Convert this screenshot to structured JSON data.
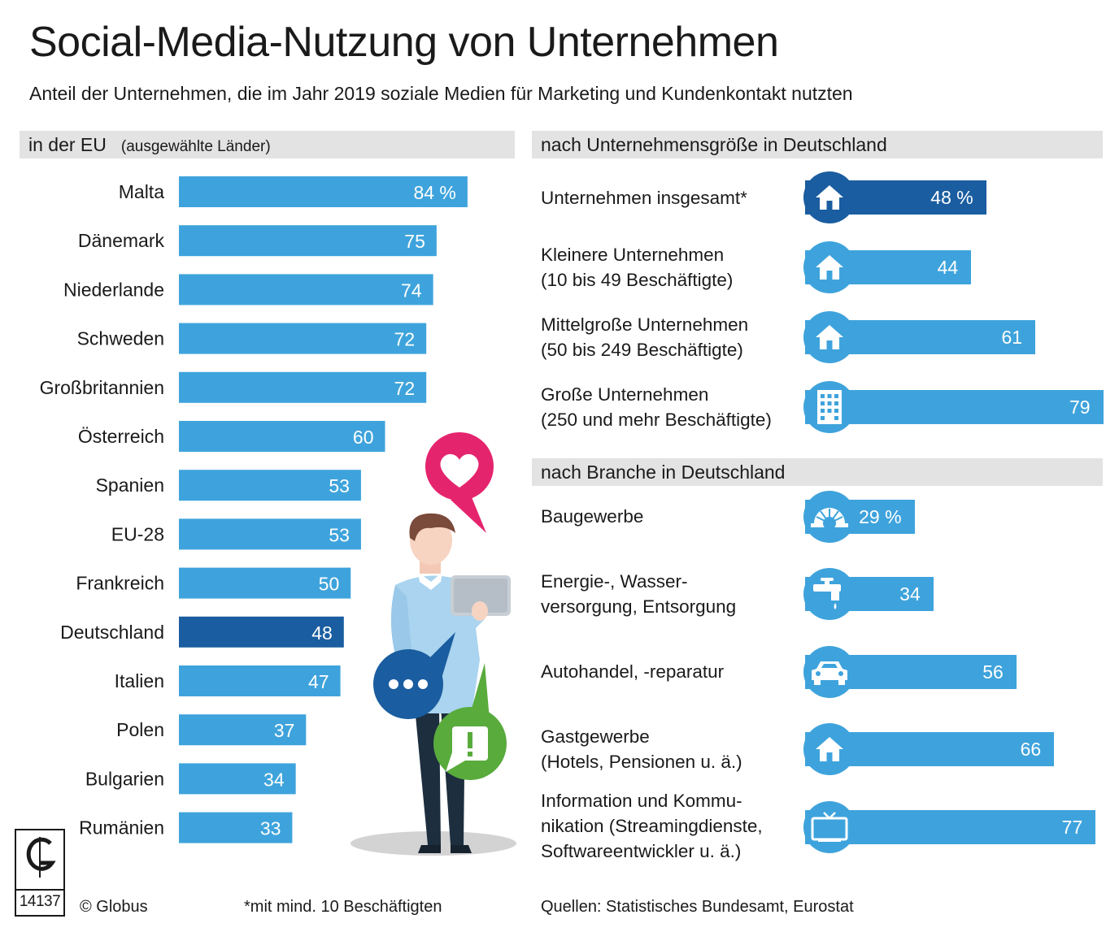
{
  "header": {
    "title": "Social-Media-Nutzung von Unternehmen",
    "subtitle": "Anteil der Unternehmen, die im Jahr 2019 soziale Medien für Marketing und Kundenkontakt nutzten"
  },
  "sections": {
    "eu_title": "in der EU",
    "eu_note": "(ausgewählte Länder)",
    "size_title": "nach Unternehmensgröße in Deutschland",
    "branch_title": "nach Branche in Deutschland"
  },
  "colors": {
    "bar": "#3ea3dc",
    "highlight": "#1a5da0",
    "section_bg": "#e3e3e3"
  },
  "chart_data": [
    {
      "type": "bar",
      "title": "in der EU (ausgewählte Länder)",
      "unit": "%",
      "xlim": [
        0,
        100
      ],
      "categories": [
        "Malta",
        "Dänemark",
        "Niederlande",
        "Schweden",
        "Großbritannien",
        "Österreich",
        "Spanien",
        "EU-28",
        "Frankreich",
        "Deutschland",
        "Italien",
        "Polen",
        "Bulgarien",
        "Rumänien"
      ],
      "values": [
        84,
        75,
        74,
        72,
        72,
        60,
        53,
        53,
        50,
        48,
        47,
        37,
        34,
        33
      ],
      "labels": [
        "84 %",
        "75",
        "74",
        "72",
        "72",
        "60",
        "53",
        "53",
        "50",
        "48",
        "47",
        "37",
        "34",
        "33"
      ],
      "highlight": [
        false,
        false,
        false,
        false,
        false,
        false,
        false,
        false,
        false,
        true,
        false,
        false,
        false,
        false
      ]
    },
    {
      "type": "bar",
      "title": "nach Unternehmensgröße in Deutschland",
      "unit": "%",
      "categories": [
        [
          "Unternehmen insgesamt*"
        ],
        [
          "Kleinere Unternehmen",
          "(10 bis 49 Beschäftigte)"
        ],
        [
          "Mittelgroße Unternehmen",
          "(50 bis 249 Beschäftigte)"
        ],
        [
          "Große Unternehmen",
          "(250 und mehr Beschäftigte)"
        ]
      ],
      "values": [
        48,
        44,
        61,
        79
      ],
      "labels": [
        "48 %",
        "44",
        "61",
        "79"
      ],
      "icons": [
        "house-icon",
        "house-icon",
        "house-icon",
        "office-building-icon"
      ],
      "highlight": [
        true,
        false,
        false,
        false
      ]
    },
    {
      "type": "bar",
      "title": "nach Branche in Deutschland",
      "unit": "%",
      "categories": [
        [
          "Baugewerbe"
        ],
        [
          "Energie-, Wasser-",
          "versorgung, Entsorgung"
        ],
        [
          "Autohandel, -reparatur"
        ],
        [
          "Gastgewerbe",
          "(Hotels, Pensionen u. ä.)"
        ],
        [
          "Information und Kommu-",
          "nikation (Streamingdienste,",
          "Softwareentwickler u. ä.)"
        ]
      ],
      "values": [
        29,
        34,
        56,
        66,
        77
      ],
      "labels": [
        "29 %",
        "34",
        "56",
        "66",
        "77"
      ],
      "icons": [
        "hard-hat-icon",
        "water-tap-icon",
        "car-icon",
        "house-icon",
        "tv-icon"
      ],
      "highlight": [
        false,
        false,
        false,
        false,
        false
      ]
    }
  ],
  "footer": {
    "logo_code": "14137",
    "credit": "© Globus",
    "footnote": "*mit mind. 10 Beschäftigten",
    "sources": "Quellen: Statistisches Bundesamt, Eurostat"
  }
}
